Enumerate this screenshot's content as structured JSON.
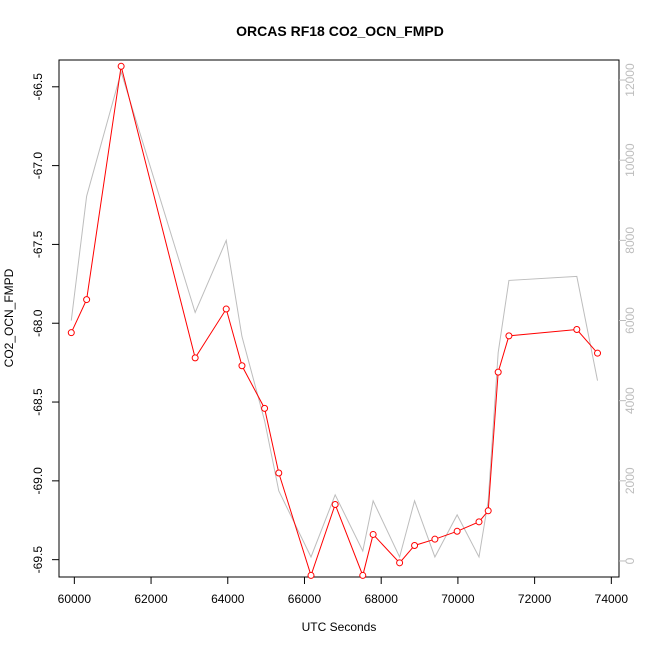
{
  "chart_data": {
    "type": "line",
    "title": "ORCAS RF18 CO2_OCN_FMPD",
    "xlabel": "UTC Seconds",
    "ylabel": "CO2_OCN_FMPD",
    "xlim": [
      59600,
      74200
    ],
    "ylim": [
      -69.61,
      -66.33
    ],
    "y2lim": [
      -400,
      12500
    ],
    "x_ticks": [
      60000,
      62000,
      64000,
      66000,
      68000,
      70000,
      72000,
      74000
    ],
    "x_tick_labels": [
      "60000",
      "62000",
      "64000",
      "66000",
      "68000",
      "70000",
      "72000",
      "74000"
    ],
    "y_ticks": [
      -66.5,
      -67.0,
      -67.5,
      -68.0,
      -68.5,
      -69.0,
      -69.5
    ],
    "y_tick_labels": [
      "-66.5",
      "-67.0",
      "-67.5",
      "-68.0",
      "-68.5",
      "-69.0",
      "-69.5"
    ],
    "y2_ticks": [
      0,
      2000,
      4000,
      6000,
      8000,
      10000,
      12000
    ],
    "y2_tick_labels": [
      "0",
      "2000",
      "4000",
      "6000",
      "8000",
      "10000",
      "12000"
    ],
    "series": [
      {
        "axis": "left",
        "color": "#ff0000",
        "marker": "open-circle",
        "x": [
          59920,
          60320,
          61220,
          63150,
          63960,
          64370,
          64960,
          65330,
          66170,
          66800,
          67520,
          67790,
          68480,
          68870,
          69400,
          69980,
          70550,
          70790,
          71050,
          71330,
          73100,
          73640
        ],
        "y": [
          -68.06,
          -67.85,
          -66.37,
          -68.22,
          -67.91,
          -68.27,
          -68.54,
          -68.95,
          -69.6,
          -69.15,
          -69.6,
          -69.34,
          -69.52,
          -69.41,
          -69.37,
          -69.32,
          -69.26,
          -69.19,
          -68.31,
          -68.08,
          -68.04,
          -68.19
        ]
      },
      {
        "axis": "right",
        "color": "#bdbdbd",
        "marker": "none",
        "x": [
          59920,
          60320,
          61220,
          63150,
          63960,
          64370,
          64960,
          65330,
          66170,
          66800,
          67520,
          67790,
          68480,
          68870,
          69400,
          69980,
          70550,
          70790,
          71050,
          71330,
          73100,
          73640
        ],
        "y": [
          6000,
          9100,
          12200,
          6200,
          8000,
          5600,
          3500,
          1750,
          100,
          1650,
          250,
          1500,
          100,
          1500,
          100,
          1150,
          100,
          1500,
          5200,
          7000,
          7100,
          4500
        ]
      }
    ]
  }
}
